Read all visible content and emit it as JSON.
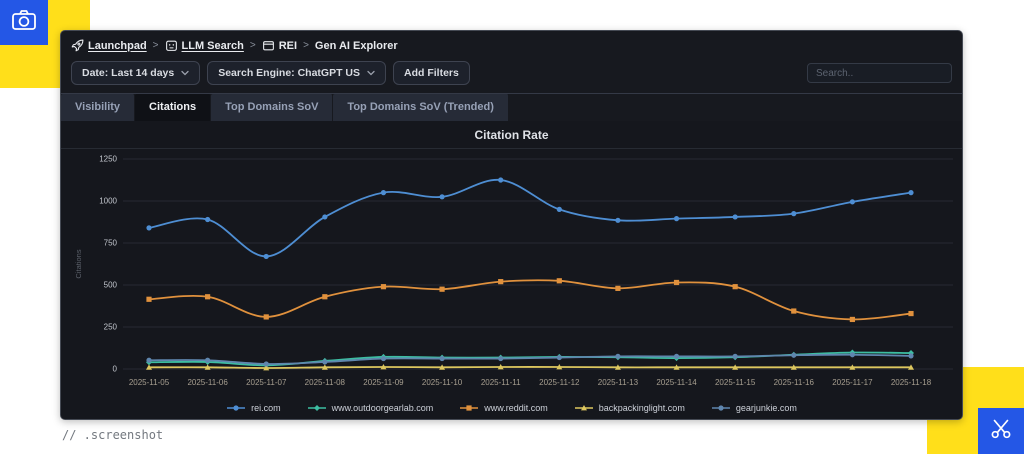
{
  "decorations": {
    "caption": "// .screenshot",
    "yellow": "#ffdf1a",
    "blue": "#2457e6",
    "top_left_icon": "camera-icon",
    "bottom_right_icon": "scissors-icon"
  },
  "breadcrumb": {
    "items": [
      {
        "label": "Launchpad",
        "icon": "rocket-icon",
        "underlined": true
      },
      {
        "label": "LLM Search",
        "icon": "robot-icon",
        "underlined": true
      },
      {
        "label": "REI",
        "icon": "window-icon",
        "underlined": false
      },
      {
        "label": "Gen AI Explorer",
        "icon": null,
        "underlined": false
      }
    ],
    "separator": ">"
  },
  "filters": {
    "date_label": "Date: Last 14 days",
    "engine_label": "Search Engine: ChatGPT US",
    "add_filters_label": "Add Filters"
  },
  "search": {
    "placeholder": "Search.."
  },
  "tabs": [
    {
      "label": "Visibility",
      "active": false
    },
    {
      "label": "Citations",
      "active": true
    },
    {
      "label": "Top Domains SoV",
      "active": false
    },
    {
      "label": "Top Domains SoV (Trended)",
      "active": false
    }
  ],
  "chart_data": {
    "type": "line",
    "title": "Citation Rate",
    "xlabel": "",
    "ylabel": "Citations",
    "ylim": [
      0,
      1250
    ],
    "yticks": [
      0,
      250,
      500,
      750,
      1000,
      1250
    ],
    "grid": true,
    "legend_position": "bottom",
    "categories": [
      "2025-11-05",
      "2025-11-06",
      "2025-11-07",
      "2025-11-08",
      "2025-11-09",
      "2025-11-10",
      "2025-11-11",
      "2025-11-12",
      "2025-11-13",
      "2025-11-14",
      "2025-11-15",
      "2025-11-16",
      "2025-11-17",
      "2025-11-18"
    ],
    "series": [
      {
        "name": "rei.com",
        "color": "#4e8ed3",
        "marker": "circle",
        "values": [
          840,
          890,
          670,
          905,
          1050,
          1025,
          1125,
          950,
          885,
          895,
          905,
          925,
          995,
          1050
        ]
      },
      {
        "name": "www.outdoorgearlab.com",
        "color": "#3dbda2",
        "marker": "diamond",
        "values": [
          40,
          42,
          22,
          48,
          72,
          68,
          68,
          72,
          70,
          65,
          70,
          85,
          98,
          95
        ]
      },
      {
        "name": "www.reddit.com",
        "color": "#e0913d",
        "marker": "square",
        "values": [
          415,
          430,
          310,
          430,
          490,
          475,
          520,
          525,
          480,
          515,
          490,
          345,
          295,
          330
        ]
      },
      {
        "name": "backpackinglight.com",
        "color": "#ddc75f",
        "marker": "triangle",
        "values": [
          10,
          10,
          6,
          10,
          12,
          10,
          12,
          12,
          10,
          10,
          10,
          10,
          10,
          10
        ]
      },
      {
        "name": "gearjunkie.com",
        "color": "#5f86ae",
        "marker": "circle",
        "values": [
          52,
          52,
          30,
          42,
          62,
          62,
          62,
          68,
          75,
          75,
          75,
          82,
          85,
          78
        ]
      }
    ]
  }
}
